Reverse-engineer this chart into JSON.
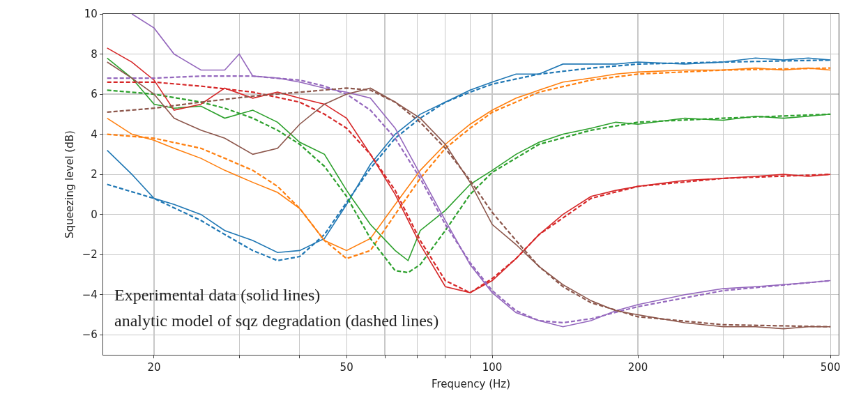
{
  "chart_data": {
    "type": "line",
    "xlabel": "Frequency (Hz)",
    "ylabel": "Squeezing level (dB)",
    "log": "x",
    "grid": true,
    "marker": "none",
    "xlim": [
      15.7,
      520
    ],
    "ylim": [
      -7,
      10
    ],
    "xticks": [
      20,
      {
        "value": 30,
        "label": null
      },
      {
        "value": 40,
        "label": null
      },
      50,
      {
        "value": 60,
        "label": null
      },
      {
        "value": 70,
        "label": null
      },
      {
        "value": 80,
        "label": null
      },
      {
        "value": 90,
        "label": null
      },
      100,
      200,
      {
        "value": 300,
        "label": null
      },
      {
        "value": 400,
        "label": null
      },
      500
    ],
    "yticks": [
      {
        "value": -6,
        "label": "−6"
      },
      {
        "value": -4,
        "label": "−4"
      },
      {
        "value": -2,
        "label": "−2"
      },
      0,
      2,
      4,
      6,
      8,
      10
    ],
    "annotations": [
      "Experimental data (solid lines)",
      "analytic model of sqz degradation (dashed lines)"
    ],
    "series": [
      {
        "color": "#1f77b4",
        "line_style": "solid",
        "x": [
          16,
          18,
          20,
          22,
          25,
          28,
          32,
          36,
          40,
          45,
          50,
          56,
          63,
          71,
          80,
          90,
          100,
          112,
          125,
          140,
          160,
          180,
          200,
          250,
          300,
          350,
          400,
          450,
          500
        ],
        "values": [
          3.2,
          2.0,
          0.8,
          0.5,
          0,
          -0.8,
          -1.3,
          -1.9,
          -1.8,
          -1.2,
          0.5,
          2.5,
          4.0,
          5.0,
          5.6,
          6.2,
          6.6,
          7.0,
          7.0,
          7.5,
          7.5,
          7.5,
          7.6,
          7.5,
          7.6,
          7.8,
          7.7,
          7.8,
          7.7
        ]
      },
      {
        "color": "#1f77b4",
        "line_style": "dashed",
        "x": [
          16,
          20,
          25,
          28,
          32,
          36,
          40,
          45,
          50,
          56,
          63,
          71,
          80,
          90,
          100,
          125,
          160,
          200,
          300,
          500
        ],
        "values": [
          1.5,
          0.8,
          -0.3,
          -1.0,
          -1.8,
          -2.3,
          -2.1,
          -1.0,
          0.6,
          2.3,
          3.8,
          4.8,
          5.6,
          6.1,
          6.5,
          7.0,
          7.3,
          7.5,
          7.6,
          7.7
        ]
      },
      {
        "color": "#ff7f0e",
        "line_style": "solid",
        "x": [
          16,
          18,
          20,
          22,
          25,
          28,
          32,
          36,
          40,
          45,
          50,
          56,
          63,
          71,
          80,
          90,
          100,
          112,
          125,
          140,
          160,
          180,
          200,
          250,
          300,
          350,
          400,
          450,
          500
        ],
        "values": [
          4.8,
          4.0,
          3.7,
          3.3,
          2.8,
          2.2,
          1.6,
          1.1,
          0.3,
          -1.3,
          -1.8,
          -1.2,
          0.5,
          2.2,
          3.5,
          4.5,
          5.2,
          5.8,
          6.2,
          6.6,
          6.8,
          7.0,
          7.1,
          7.2,
          7.2,
          7.3,
          7.2,
          7.3,
          7.2
        ]
      },
      {
        "color": "#ff7f0e",
        "line_style": "dashed",
        "x": [
          16,
          20,
          25,
          28,
          32,
          36,
          40,
          45,
          50,
          56,
          63,
          71,
          80,
          90,
          100,
          125,
          160,
          200,
          300,
          500
        ],
        "values": [
          4.0,
          3.8,
          3.3,
          2.8,
          2.2,
          1.4,
          0.3,
          -1.3,
          -2.2,
          -1.8,
          0,
          1.8,
          3.3,
          4.3,
          5.1,
          6.1,
          6.7,
          7.0,
          7.2,
          7.3
        ]
      },
      {
        "color": "#2ca02c",
        "line_style": "solid",
        "x": [
          16,
          18,
          20,
          22,
          25,
          28,
          32,
          36,
          40,
          45,
          50,
          56,
          63,
          67,
          71,
          80,
          90,
          100,
          112,
          125,
          140,
          160,
          180,
          200,
          250,
          300,
          350,
          400,
          450,
          500
        ],
        "values": [
          7.8,
          6.8,
          5.5,
          5.3,
          5.4,
          4.8,
          5.2,
          4.6,
          3.6,
          3.0,
          1.2,
          -0.5,
          -1.8,
          -2.3,
          -0.8,
          0.2,
          1.5,
          2.2,
          3.0,
          3.6,
          4.0,
          4.3,
          4.6,
          4.5,
          4.8,
          4.7,
          4.9,
          4.8,
          4.9,
          5.0
        ]
      },
      {
        "color": "#2ca02c",
        "line_style": "dashed",
        "x": [
          16,
          20,
          25,
          28,
          32,
          36,
          40,
          45,
          50,
          56,
          63,
          67,
          71,
          80,
          90,
          100,
          125,
          160,
          200,
          300,
          500
        ],
        "values": [
          6.2,
          6.0,
          5.6,
          5.3,
          4.8,
          4.2,
          3.5,
          2.4,
          0.9,
          -1.2,
          -2.8,
          -2.9,
          -2.5,
          -0.8,
          1.0,
          2.1,
          3.5,
          4.2,
          4.6,
          4.8,
          5.0
        ]
      },
      {
        "color": "#d62728",
        "line_style": "solid",
        "x": [
          16,
          18,
          20,
          22,
          25,
          28,
          32,
          36,
          40,
          45,
          50,
          56,
          63,
          71,
          80,
          90,
          100,
          112,
          125,
          140,
          160,
          180,
          200,
          250,
          300,
          350,
          400,
          450,
          500
        ],
        "values": [
          8.3,
          7.6,
          6.7,
          5.2,
          5.5,
          6.3,
          5.8,
          6.1,
          5.8,
          5.5,
          4.8,
          3.0,
          1.0,
          -1.5,
          -3.6,
          -3.9,
          -3.3,
          -2.2,
          -1.0,
          0,
          0.9,
          1.2,
          1.4,
          1.7,
          1.8,
          1.9,
          2.0,
          1.9,
          2.0
        ]
      },
      {
        "color": "#d62728",
        "line_style": "dashed",
        "x": [
          16,
          20,
          25,
          32,
          40,
          45,
          50,
          56,
          63,
          71,
          80,
          90,
          100,
          112,
          125,
          160,
          200,
          300,
          500
        ],
        "values": [
          6.6,
          6.6,
          6.4,
          6.1,
          5.6,
          5.0,
          4.3,
          3.0,
          1.2,
          -1.3,
          -3.3,
          -3.9,
          -3.2,
          -2.2,
          -1.0,
          0.8,
          1.4,
          1.8,
          2.0
        ]
      },
      {
        "color": "#9467bd",
        "line_style": "solid",
        "x": [
          18,
          20,
          22,
          25,
          28,
          30,
          32,
          36,
          40,
          45,
          50,
          56,
          63,
          71,
          80,
          90,
          100,
          112,
          125,
          140,
          160,
          180,
          200,
          250,
          300,
          350,
          400,
          450,
          500
        ],
        "values": [
          10.0,
          9.3,
          8.0,
          7.2,
          7.2,
          8.0,
          6.9,
          6.8,
          6.6,
          6.3,
          6.1,
          5.8,
          4.3,
          2.0,
          -0.3,
          -2.5,
          -3.9,
          -4.9,
          -5.3,
          -5.6,
          -5.3,
          -4.8,
          -4.5,
          -4.0,
          -3.7,
          -3.6,
          -3.5,
          -3.4,
          -3.3
        ]
      },
      {
        "color": "#9467bd",
        "line_style": "dashed",
        "x": [
          16,
          20,
          25,
          32,
          40,
          45,
          50,
          56,
          63,
          71,
          80,
          90,
          100,
          112,
          125,
          140,
          160,
          200,
          300,
          500
        ],
        "values": [
          6.8,
          6.8,
          6.9,
          6.9,
          6.7,
          6.4,
          6.0,
          5.2,
          3.8,
          1.8,
          -0.5,
          -2.4,
          -3.8,
          -4.8,
          -5.3,
          -5.4,
          -5.2,
          -4.6,
          -3.8,
          -3.3
        ]
      },
      {
        "color": "#8c564b",
        "line_style": "solid",
        "x": [
          16,
          18,
          20,
          22,
          25,
          28,
          32,
          36,
          40,
          45,
          50,
          56,
          63,
          71,
          80,
          90,
          100,
          112,
          125,
          140,
          160,
          180,
          200,
          250,
          300,
          350,
          400,
          450,
          500
        ],
        "values": [
          7.6,
          6.8,
          6.0,
          4.8,
          4.2,
          3.8,
          3.0,
          3.3,
          4.5,
          5.5,
          6.0,
          6.3,
          5.6,
          4.8,
          3.5,
          1.6,
          -0.5,
          -1.5,
          -2.6,
          -3.5,
          -4.3,
          -4.8,
          -5.0,
          -5.4,
          -5.6,
          -5.6,
          -5.7,
          -5.6,
          -5.6
        ]
      },
      {
        "color": "#8c564b",
        "line_style": "dashed",
        "x": [
          16,
          20,
          25,
          32,
          40,
          50,
          56,
          63,
          71,
          80,
          90,
          100,
          112,
          125,
          140,
          160,
          200,
          300,
          500
        ],
        "values": [
          5.1,
          5.3,
          5.6,
          5.9,
          6.1,
          6.3,
          6.2,
          5.6,
          4.6,
          3.3,
          1.7,
          0.1,
          -1.3,
          -2.6,
          -3.6,
          -4.4,
          -5.1,
          -5.5,
          -5.6
        ]
      }
    ]
  }
}
